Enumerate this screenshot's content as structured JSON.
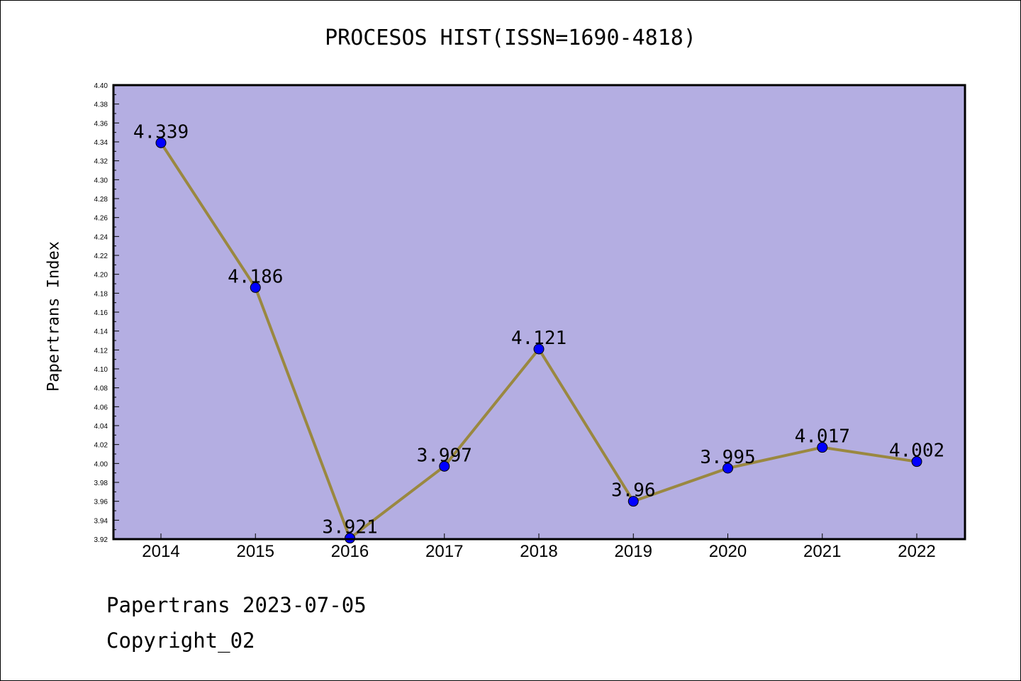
{
  "title": "PROCESOS HIST(ISSN=1690-4818)",
  "footer": {
    "line1": "Papertrans 2023-07-05",
    "line2": "Copyright_02"
  },
  "colors": {
    "plot_background": "#b4aee2",
    "line": "#9a8840",
    "marker": "#0000ff",
    "axis": "#000000"
  },
  "chart_data": {
    "type": "line",
    "title": "PROCESOS HIST(ISSN=1690-4818)",
    "xlabel": "",
    "ylabel": "Papertrans Index",
    "categories": [
      "2014",
      "2015",
      "2016",
      "2017",
      "2018",
      "2019",
      "2020",
      "2021",
      "2022"
    ],
    "series": [
      {
        "values": [
          4.339,
          4.186,
          3.921,
          3.997,
          4.121,
          3.96,
          3.995,
          4.017,
          4.002
        ],
        "labels": [
          "4.339",
          "4.186",
          "3.921",
          "3.997",
          "4.121",
          "3.96",
          "3.995",
          "4.017",
          "4.002"
        ]
      }
    ],
    "ylim": [
      3.92,
      4.4
    ],
    "yticks": [
      "3.92",
      "3.94",
      "3.96",
      "3.98",
      "4.00",
      "4.02",
      "4.04",
      "4.06",
      "4.08",
      "4.10",
      "4.12",
      "4.14",
      "4.16",
      "4.18",
      "4.20",
      "4.22",
      "4.24",
      "4.26",
      "4.28",
      "4.30",
      "4.32",
      "4.34",
      "4.36",
      "4.38",
      "4.40"
    ],
    "grid": false,
    "legend": "none"
  }
}
